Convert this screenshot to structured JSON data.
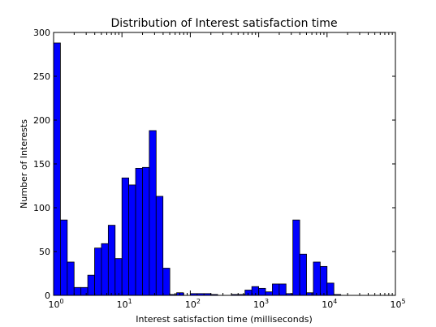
{
  "chart_data": {
    "type": "bar",
    "title": "Distribution of Interest satisfaction time",
    "xlabel": "Interest satisfaction time (milliseconds)",
    "ylabel": "Number of Interests",
    "x_scale": "log",
    "xlim": [
      1,
      100000
    ],
    "ylim": [
      0,
      300
    ],
    "grid": false,
    "x_ticks": [
      {
        "base": "10",
        "exp": "0",
        "value": 1
      },
      {
        "base": "10",
        "exp": "1",
        "value": 10
      },
      {
        "base": "10",
        "exp": "2",
        "value": 100
      },
      {
        "base": "10",
        "exp": "3",
        "value": 1000
      },
      {
        "base": "10",
        "exp": "4",
        "value": 10000
      },
      {
        "base": "10",
        "exp": "5",
        "value": 100000
      }
    ],
    "y_ticks": [
      "0",
      "50",
      "100",
      "150",
      "200",
      "250",
      "300"
    ],
    "bin_width_decades": 0.1,
    "bin_start": 1,
    "values": [
      288,
      86,
      38,
      9,
      9,
      23,
      54,
      59,
      80,
      42,
      134,
      126,
      145,
      146,
      188,
      113,
      31,
      1,
      3,
      0,
      2,
      2,
      2,
      1,
      0,
      0,
      1,
      1,
      6,
      10,
      8,
      4,
      13,
      13,
      2,
      86,
      47,
      3,
      38,
      33,
      14,
      1,
      0,
      0,
      0,
      0,
      0,
      0,
      0,
      0
    ]
  }
}
